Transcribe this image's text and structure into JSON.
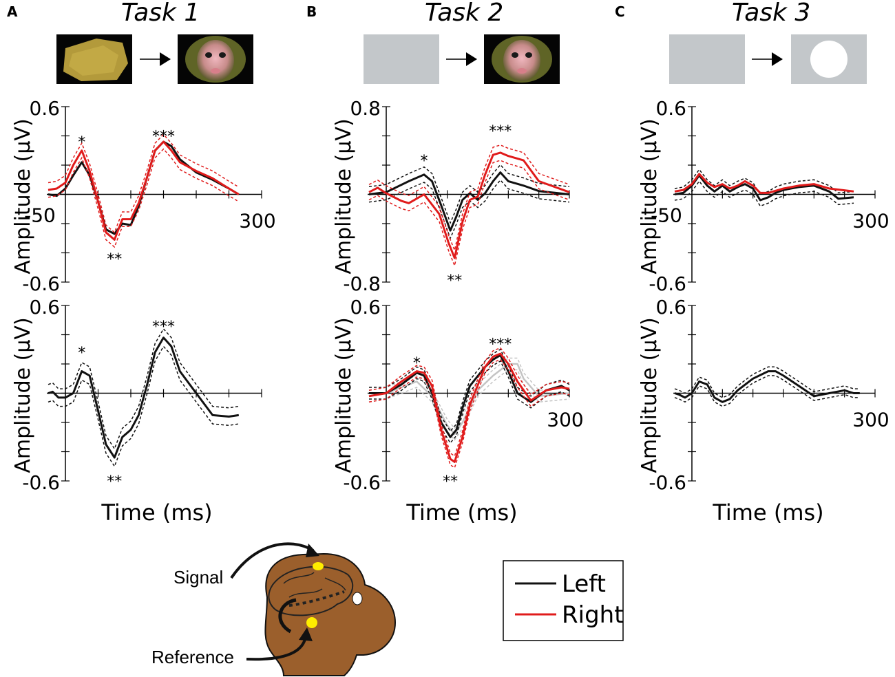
{
  "colors": {
    "left": "#111111",
    "right": "#e01b1b",
    "gray": "#c4c4c4",
    "stim_gray": "#c3c7ca",
    "head": "#9b5f2c",
    "electrode": "#ffee00"
  },
  "panels": [
    {
      "letter": "A",
      "title": "Task 1",
      "stimuli": [
        "noise-patch",
        "monkey-face"
      ]
    },
    {
      "letter": "B",
      "title": "Task 2",
      "stimuli": [
        "gray-blank",
        "monkey-face"
      ]
    },
    {
      "letter": "C",
      "title": "Task 3",
      "stimuli": [
        "gray-blank",
        "white-disk"
      ]
    }
  ],
  "axis_text": {
    "ylabel": "Amplitude (µV)",
    "xlabel": "Time (ms)"
  },
  "legend": {
    "left": "Left",
    "right": "Right"
  },
  "schematic": {
    "signal": "Signal",
    "reference": "Reference"
  },
  "chart_data": [
    {
      "id": "A-top",
      "type": "line",
      "ylabel": "Amplitude (µV)",
      "ylim": [
        -0.6,
        0.6
      ],
      "xlim": [
        -50,
        300
      ],
      "tick_labels": {
        "ymax": "0.6",
        "ymin": "-0.6",
        "xmin": "-50",
        "xmax": "300"
      },
      "band": 0.05,
      "series": [
        {
          "name": "Left",
          "color": "left",
          "dashed_band": false,
          "points": [
            [
              -50,
              0
            ],
            [
              -25,
              -0.01
            ],
            [
              0,
              0.04
            ],
            [
              12,
              0.13
            ],
            [
              25,
              0.22
            ],
            [
              37,
              0.13
            ],
            [
              50,
              -0.05
            ],
            [
              62,
              -0.24
            ],
            [
              75,
              -0.27
            ],
            [
              87,
              -0.2
            ],
            [
              100,
              -0.21
            ],
            [
              112,
              -0.08
            ],
            [
              125,
              0.12
            ],
            [
              137,
              0.3
            ],
            [
              150,
              0.36
            ],
            [
              162,
              0.33
            ],
            [
              175,
              0.24
            ],
            [
              200,
              0.15
            ],
            [
              225,
              0.1
            ],
            [
              250,
              0.04
            ],
            [
              265,
              0
            ]
          ]
        },
        {
          "name": "Right",
          "color": "right",
          "dashed_band": true,
          "points": [
            [
              -50,
              0.03
            ],
            [
              -25,
              0.04
            ],
            [
              0,
              0.08
            ],
            [
              12,
              0.2
            ],
            [
              25,
              0.3
            ],
            [
              37,
              0.16
            ],
            [
              50,
              -0.05
            ],
            [
              62,
              -0.26
            ],
            [
              75,
              -0.31
            ],
            [
              87,
              -0.17
            ],
            [
              100,
              -0.17
            ],
            [
              112,
              -0.06
            ],
            [
              125,
              0.12
            ],
            [
              137,
              0.3
            ],
            [
              150,
              0.36
            ],
            [
              162,
              0.3
            ],
            [
              175,
              0.22
            ],
            [
              200,
              0.16
            ],
            [
              225,
              0.11
            ],
            [
              250,
              0.04
            ],
            [
              265,
              0
            ]
          ]
        }
      ],
      "stars": [
        {
          "text": "*",
          "x": 25,
          "y": 0.36
        },
        {
          "text": "**",
          "x": 75,
          "y": -0.44
        },
        {
          "text": "***",
          "x": 150,
          "y": 0.4
        }
      ]
    },
    {
      "id": "B-top",
      "type": "line",
      "ylabel": "Amplitude (µV)",
      "ylim": [
        -0.8,
        0.8
      ],
      "xlim": [
        -50,
        300
      ],
      "tick_labels": {
        "ymax": "0.8",
        "ymin": "-0.8"
      },
      "band": 0.07,
      "series": [
        {
          "name": "Left",
          "color": "left",
          "dashed_band": true,
          "points": [
            [
              -50,
              0
            ],
            [
              0,
              0.02
            ],
            [
              37,
              0.12
            ],
            [
              62,
              0.18
            ],
            [
              75,
              0.12
            ],
            [
              90,
              -0.1
            ],
            [
              105,
              -0.33
            ],
            [
              115,
              -0.2
            ],
            [
              125,
              -0.05
            ],
            [
              137,
              0.01
            ],
            [
              150,
              -0.05
            ],
            [
              162,
              0.01
            ],
            [
              175,
              0.12
            ],
            [
              187,
              0.2
            ],
            [
              200,
              0.12
            ],
            [
              225,
              0.08
            ],
            [
              250,
              0.03
            ],
            [
              300,
              0
            ]
          ]
        },
        {
          "name": "Right",
          "color": "right",
          "dashed_band": true,
          "points": [
            [
              -50,
              0.02
            ],
            [
              -25,
              0.06
            ],
            [
              0,
              0.01
            ],
            [
              25,
              -0.06
            ],
            [
              37,
              -0.08
            ],
            [
              62,
              0.0
            ],
            [
              87,
              -0.18
            ],
            [
              102,
              -0.44
            ],
            [
              112,
              -0.58
            ],
            [
              125,
              -0.25
            ],
            [
              137,
              -0.05
            ],
            [
              150,
              -0.02
            ],
            [
              162,
              0.18
            ],
            [
              175,
              0.36
            ],
            [
              187,
              0.38
            ],
            [
              200,
              0.35
            ],
            [
              225,
              0.31
            ],
            [
              250,
              0.12
            ],
            [
              300,
              0.02
            ]
          ]
        }
      ],
      "stars": [
        {
          "text": "*",
          "x": 62,
          "y": 0.31
        },
        {
          "text": "**",
          "x": 112,
          "y": -0.78
        },
        {
          "text": "***",
          "x": 187,
          "y": 0.58
        }
      ]
    },
    {
      "id": "C-top",
      "type": "line",
      "ylabel": "Amplitude (µV)",
      "ylim": [
        -0.6,
        0.6
      ],
      "xlim": [
        -50,
        300
      ],
      "tick_labels": {
        "ymax": "0.6",
        "ymin": "-0.6",
        "xmin": "-50",
        "xmax": "300"
      },
      "band": 0.04,
      "series": [
        {
          "name": "Left",
          "color": "left",
          "dashed_band": true,
          "points": [
            [
              -50,
              0
            ],
            [
              -25,
              0.01
            ],
            [
              0,
              0.06
            ],
            [
              12,
              0.13
            ],
            [
              25,
              0.06
            ],
            [
              37,
              0.02
            ],
            [
              50,
              0.06
            ],
            [
              62,
              0.02
            ],
            [
              75,
              0.05
            ],
            [
              87,
              0.07
            ],
            [
              100,
              0.04
            ],
            [
              112,
              -0.04
            ],
            [
              125,
              -0.02
            ],
            [
              137,
              0.01
            ],
            [
              150,
              0.03
            ],
            [
              175,
              0.05
            ],
            [
              200,
              0.06
            ],
            [
              225,
              0.02
            ],
            [
              240,
              -0.03
            ],
            [
              265,
              -0.02
            ]
          ]
        },
        {
          "name": "Right",
          "color": "right",
          "dashed_band": false,
          "points": [
            [
              -50,
              0.02
            ],
            [
              -25,
              0.03
            ],
            [
              0,
              0.07
            ],
            [
              12,
              0.14
            ],
            [
              25,
              0.08
            ],
            [
              37,
              0.05
            ],
            [
              50,
              0.07
            ],
            [
              62,
              0.04
            ],
            [
              75,
              0.06
            ],
            [
              87,
              0.09
            ],
            [
              100,
              0.06
            ],
            [
              112,
              0.01
            ],
            [
              125,
              0.01
            ],
            [
              150,
              0.04
            ],
            [
              175,
              0.06
            ],
            [
              200,
              0.07
            ],
            [
              225,
              0.04
            ],
            [
              265,
              0.02
            ]
          ]
        }
      ],
      "stars": []
    },
    {
      "id": "A-bottom",
      "type": "line",
      "ylabel": "Amplitude (µV)",
      "ylim": [
        -0.6,
        0.6
      ],
      "xlim": [
        -50,
        300
      ],
      "tick_labels": {
        "ymax": "0.6",
        "ymin": "-0.6"
      },
      "band": 0.06,
      "series": [
        {
          "name": "Left",
          "color": "left",
          "dashed_band": true,
          "points": [
            [
              -50,
              0
            ],
            [
              -37,
              0.01
            ],
            [
              -20,
              -0.03
            ],
            [
              0,
              -0.03
            ],
            [
              12,
              0.0
            ],
            [
              25,
              0.15
            ],
            [
              37,
              0.12
            ],
            [
              50,
              -0.12
            ],
            [
              62,
              -0.35
            ],
            [
              75,
              -0.44
            ],
            [
              87,
              -0.3
            ],
            [
              100,
              -0.25
            ],
            [
              112,
              -0.15
            ],
            [
              125,
              0.06
            ],
            [
              137,
              0.28
            ],
            [
              150,
              0.38
            ],
            [
              162,
              0.32
            ],
            [
              175,
              0.15
            ],
            [
              200,
              0.0
            ],
            [
              225,
              -0.15
            ],
            [
              250,
              -0.16
            ],
            [
              265,
              -0.15
            ]
          ]
        }
      ],
      "stars": [
        {
          "text": "*",
          "x": 25,
          "y": 0.28
        },
        {
          "text": "**",
          "x": 75,
          "y": -0.6
        },
        {
          "text": "***",
          "x": 150,
          "y": 0.46
        }
      ]
    },
    {
      "id": "B-bottom",
      "type": "line",
      "ylabel": "Amplitude (µV)",
      "ylim": [
        -0.6,
        0.6
      ],
      "xlim": [
        -50,
        300
      ],
      "tick_labels": {
        "ymax": "0.6",
        "ymin": "-0.6",
        "xmax": "300"
      },
      "band": 0.04,
      "series": [
        {
          "name": "Gray",
          "color": "gray",
          "dashed_band": true,
          "points": [
            [
              -50,
              -0.02
            ],
            [
              0,
              0.0
            ],
            [
              25,
              0.04
            ],
            [
              50,
              0.08
            ],
            [
              75,
              -0.02
            ],
            [
              100,
              -0.22
            ],
            [
              112,
              -0.28
            ],
            [
              125,
              -0.2
            ],
            [
              150,
              0.02
            ],
            [
              175,
              0.12
            ],
            [
              200,
              0.2
            ],
            [
              215,
              0.2
            ],
            [
              225,
              0.1
            ],
            [
              250,
              -0.02
            ],
            [
              300,
              0.0
            ]
          ]
        },
        {
          "name": "Left",
          "color": "left",
          "dashed_band": true,
          "points": [
            [
              -50,
              0
            ],
            [
              0,
              0.0
            ],
            [
              25,
              0.06
            ],
            [
              50,
              0.14
            ],
            [
              62,
              0.12
            ],
            [
              75,
              0.0
            ],
            [
              90,
              -0.2
            ],
            [
              105,
              -0.3
            ],
            [
              115,
              -0.25
            ],
            [
              125,
              -0.1
            ],
            [
              137,
              0.05
            ],
            [
              162,
              0.18
            ],
            [
              175,
              0.23
            ],
            [
              187,
              0.26
            ],
            [
              200,
              0.15
            ],
            [
              215,
              0.0
            ],
            [
              237,
              -0.06
            ],
            [
              262,
              0.02
            ],
            [
              287,
              0.05
            ],
            [
              300,
              0.02
            ]
          ]
        },
        {
          "name": "Right",
          "color": "right",
          "dashed_band": true,
          "points": [
            [
              -50,
              -0.02
            ],
            [
              0,
              0.0
            ],
            [
              25,
              0.08
            ],
            [
              50,
              0.15
            ],
            [
              62,
              0.14
            ],
            [
              75,
              0.05
            ],
            [
              90,
              -0.25
            ],
            [
              105,
              -0.45
            ],
            [
              112,
              -0.47
            ],
            [
              125,
              -0.3
            ],
            [
              137,
              -0.08
            ],
            [
              162,
              0.18
            ],
            [
              175,
              0.25
            ],
            [
              187,
              0.27
            ],
            [
              200,
              0.2
            ],
            [
              215,
              0.08
            ],
            [
              237,
              -0.05
            ],
            [
              262,
              0.02
            ],
            [
              287,
              0.04
            ],
            [
              300,
              0.03
            ]
          ]
        }
      ],
      "stars": [
        {
          "text": "*",
          "x": 50,
          "y": 0.21
        },
        {
          "text": "**",
          "x": 105,
          "y": -0.6
        },
        {
          "text": "***",
          "x": 187,
          "y": 0.34
        }
      ]
    },
    {
      "id": "C-bottom",
      "type": "line",
      "ylabel": "Amplitude (µV)",
      "ylim": [
        -0.6,
        0.6
      ],
      "xlim": [
        -50,
        300
      ],
      "tick_labels": {
        "ymax": "0.6",
        "ymin": "-0.6",
        "xmax": "300"
      },
      "band": 0.03,
      "series": [
        {
          "name": "Left",
          "color": "left",
          "dashed_band": true,
          "points": [
            [
              -50,
              0
            ],
            [
              -37,
              -0.01
            ],
            [
              -20,
              -0.03
            ],
            [
              0,
              0.0
            ],
            [
              12,
              0.08
            ],
            [
              25,
              0.06
            ],
            [
              37,
              -0.03
            ],
            [
              50,
              -0.06
            ],
            [
              62,
              -0.04
            ],
            [
              75,
              0.02
            ],
            [
              100,
              0.1
            ],
            [
              125,
              0.15
            ],
            [
              137,
              0.15
            ],
            [
              150,
              0.12
            ],
            [
              175,
              0.05
            ],
            [
              200,
              -0.02
            ],
            [
              225,
              0.0
            ],
            [
              250,
              0.02
            ],
            [
              275,
              0.0
            ],
            [
              265,
              0.0
            ]
          ]
        }
      ],
      "stars": []
    }
  ]
}
